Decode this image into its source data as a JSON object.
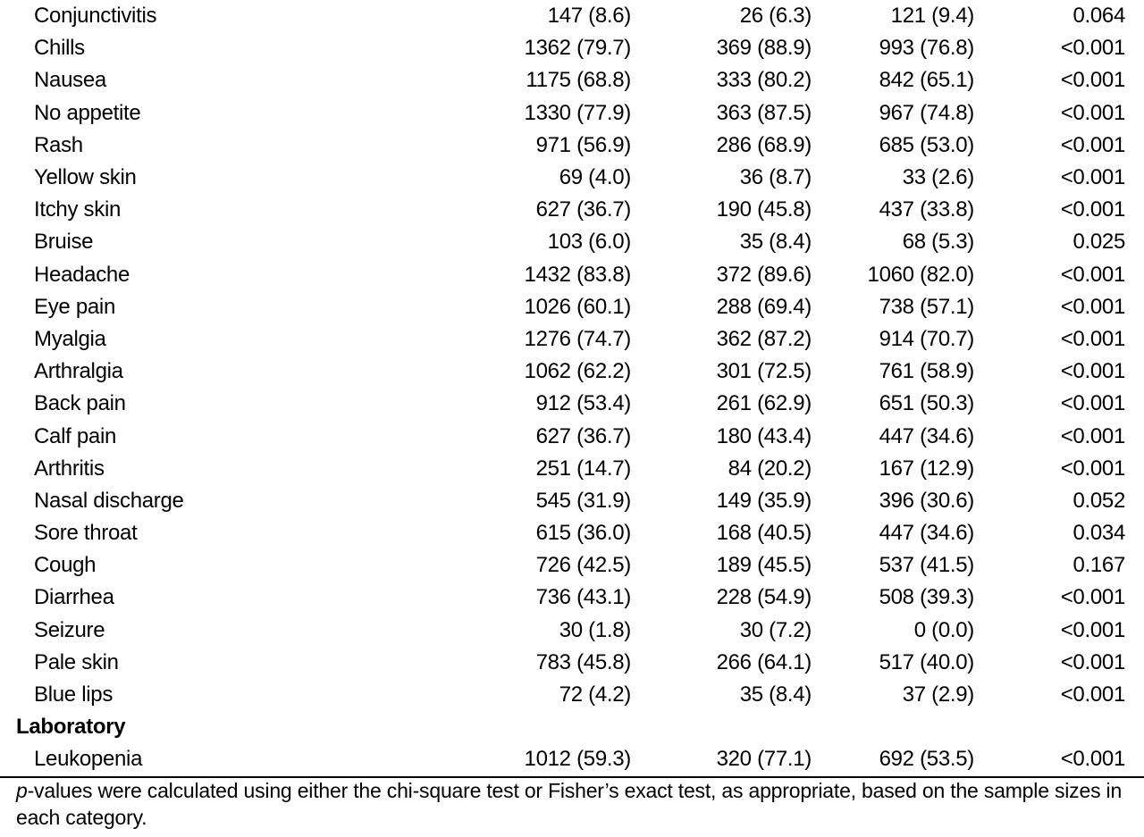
{
  "rows": [
    {
      "label": "Conjunctivitis",
      "total": "147 (8.6)",
      "g1": "26 (6.3)",
      "g2": "121 (9.4)",
      "p": "0.064"
    },
    {
      "label": "Chills",
      "total": "1362 (79.7)",
      "g1": "369 (88.9)",
      "g2": "993 (76.8)",
      "p": "<0.001"
    },
    {
      "label": "Nausea",
      "total": "1175 (68.8)",
      "g1": "333 (80.2)",
      "g2": "842 (65.1)",
      "p": "<0.001"
    },
    {
      "label": "No appetite",
      "total": "1330 (77.9)",
      "g1": "363 (87.5)",
      "g2": "967 (74.8)",
      "p": "<0.001"
    },
    {
      "label": "Rash",
      "total": "971 (56.9)",
      "g1": "286 (68.9)",
      "g2": "685 (53.0)",
      "p": "<0.001"
    },
    {
      "label": "Yellow skin",
      "total": "69 (4.0)",
      "g1": "36 (8.7)",
      "g2": "33 (2.6)",
      "p": "<0.001"
    },
    {
      "label": "Itchy skin",
      "total": "627 (36.7)",
      "g1": "190 (45.8)",
      "g2": "437 (33.8)",
      "p": "<0.001"
    },
    {
      "label": "Bruise",
      "total": "103 (6.0)",
      "g1": "35 (8.4)",
      "g2": "68 (5.3)",
      "p": "0.025"
    },
    {
      "label": "Headache",
      "total": "1432 (83.8)",
      "g1": "372 (89.6)",
      "g2": "1060 (82.0)",
      "p": "<0.001"
    },
    {
      "label": "Eye pain",
      "total": "1026 (60.1)",
      "g1": "288 (69.4)",
      "g2": "738 (57.1)",
      "p": "<0.001"
    },
    {
      "label": "Myalgia",
      "total": "1276 (74.7)",
      "g1": "362 (87.2)",
      "g2": "914 (70.7)",
      "p": "<0.001"
    },
    {
      "label": "Arthralgia",
      "total": "1062 (62.2)",
      "g1": "301 (72.5)",
      "g2": "761 (58.9)",
      "p": "<0.001"
    },
    {
      "label": "Back pain",
      "total": "912 (53.4)",
      "g1": "261 (62.9)",
      "g2": "651 (50.3)",
      "p": "<0.001"
    },
    {
      "label": "Calf pain",
      "total": "627 (36.7)",
      "g1": "180 (43.4)",
      "g2": "447 (34.6)",
      "p": "<0.001"
    },
    {
      "label": "Arthritis",
      "total": "251 (14.7)",
      "g1": "84 (20.2)",
      "g2": "167 (12.9)",
      "p": "<0.001"
    },
    {
      "label": "Nasal discharge",
      "total": "545 (31.9)",
      "g1": "149 (35.9)",
      "g2": "396 (30.6)",
      "p": "0.052"
    },
    {
      "label": "Sore throat",
      "total": "615 (36.0)",
      "g1": "168 (40.5)",
      "g2": "447 (34.6)",
      "p": "0.034"
    },
    {
      "label": "Cough",
      "total": "726 (42.5)",
      "g1": "189 (45.5)",
      "g2": "537 (41.5)",
      "p": "0.167"
    },
    {
      "label": "Diarrhea",
      "total": "736 (43.1)",
      "g1": "228 (54.9)",
      "g2": "508 (39.3)",
      "p": "<0.001"
    },
    {
      "label": "Seizure",
      "total": "30 (1.8)",
      "g1": "30 (7.2)",
      "g2": "0 (0.0)",
      "p": "<0.001"
    },
    {
      "label": "Pale skin",
      "total": "783 (45.8)",
      "g1": "266 (64.1)",
      "g2": "517 (40.0)",
      "p": "<0.001"
    },
    {
      "label": "Blue lips",
      "total": "72 (4.2)",
      "g1": "35 (8.4)",
      "g2": "37 (2.9)",
      "p": "<0.001"
    }
  ],
  "section_label": "Laboratory",
  "lab_rows": [
    {
      "label": "Leukopenia",
      "total": "1012 (59.3)",
      "g1": "320 (77.1)",
      "g2": "692 (53.5)",
      "p": "<0.001"
    }
  ],
  "footnote": {
    "italic": "p",
    "text": "-values were calculated using either the chi-square test or Fisher’s exact test, as appropriate, based on the sample sizes in each category."
  }
}
